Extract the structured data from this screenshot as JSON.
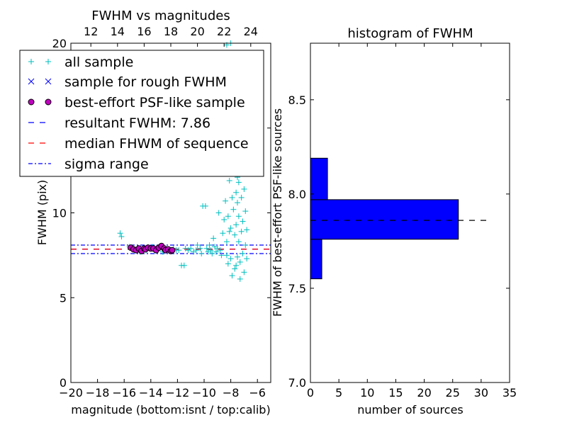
{
  "chart_data": [
    {
      "type": "scatter",
      "title": "FWHM vs magnitudes",
      "xlabel": "magnitude (bottom:isnt / top:calib)",
      "ylabel": "FWHM (pix)",
      "xlim": [
        -20,
        -5
      ],
      "ylim": [
        0,
        20
      ],
      "x_ticks": [
        -20,
        -18,
        -16,
        -14,
        -12,
        -10,
        -8,
        -6
      ],
      "x_tick_labels": [
        "−20",
        "−18",
        "−16",
        "−14",
        "−12",
        "−10",
        "−8",
        "−6"
      ],
      "y_ticks": [
        0,
        5,
        10,
        15,
        20
      ],
      "y_tick_labels": [
        "0",
        "5",
        "10",
        "15",
        "20"
      ],
      "top_axis": {
        "xlim": [
          10.5,
          25.5
        ],
        "ticks": [
          12,
          14,
          16,
          18,
          20,
          22,
          24
        ],
        "tick_labels": [
          "12",
          "14",
          "16",
          "18",
          "20",
          "22",
          "24"
        ]
      },
      "legend": {
        "placement": "upper-left",
        "entries": [
          {
            "label": "all sample",
            "marker": "plus",
            "color": "#00bfbf"
          },
          {
            "label": "sample for rough FWHM",
            "marker": "x",
            "color": "#0000ff"
          },
          {
            "label": "best-effort PSF-like sample",
            "marker": "circle",
            "color": "#bf00bf"
          },
          {
            "label": "resultant FWHM: 7.86",
            "marker": "dash-line",
            "color": "#0000ff"
          },
          {
            "label": "median FHWM of sequence",
            "marker": "dash-line",
            "color": "#ff0000"
          },
          {
            "label": "sigma range",
            "marker": "dashdot-line",
            "color": "#0000ff"
          }
        ]
      },
      "series": [
        {
          "kind": "all_sample",
          "color": "#00bfbf",
          "points": [
            [
              -16.3,
              8.8
            ],
            [
              -16.2,
              8.6
            ],
            [
              -15.6,
              8.0
            ],
            [
              -15.4,
              7.9
            ],
            [
              -15.2,
              7.8
            ],
            [
              -15.0,
              7.9
            ],
            [
              -14.8,
              7.7
            ],
            [
              -14.6,
              7.9
            ],
            [
              -14.3,
              7.8
            ],
            [
              -14.1,
              7.9
            ],
            [
              -13.9,
              8.0
            ],
            [
              -13.7,
              7.8
            ],
            [
              -13.5,
              7.9
            ],
            [
              -13.3,
              7.9
            ],
            [
              -13.1,
              7.7
            ],
            [
              -12.9,
              7.9
            ],
            [
              -12.7,
              7.8
            ],
            [
              -12.5,
              7.8
            ],
            [
              -12.3,
              7.9
            ],
            [
              -12.1,
              7.8
            ],
            [
              -11.9,
              7.8
            ],
            [
              -11.7,
              6.9
            ],
            [
              -11.5,
              6.9
            ],
            [
              -11.4,
              7.9
            ],
            [
              -11.2,
              7.8
            ],
            [
              -11.0,
              7.9
            ],
            [
              -10.8,
              7.7
            ],
            [
              -10.6,
              7.8
            ],
            [
              -10.5,
              8.1
            ],
            [
              -10.3,
              7.9
            ],
            [
              -10.2,
              7.6
            ],
            [
              -10.1,
              10.4
            ],
            [
              -9.9,
              10.4
            ],
            [
              -9.8,
              7.9
            ],
            [
              -9.7,
              7.7
            ],
            [
              -9.6,
              8.1
            ],
            [
              -9.5,
              7.8
            ],
            [
              -9.4,
              7.6
            ],
            [
              -9.3,
              8.5
            ],
            [
              -9.2,
              8.0
            ],
            [
              -9.1,
              7.7
            ],
            [
              -9.0,
              7.9
            ],
            [
              -8.9,
              10.0
            ],
            [
              -8.8,
              7.8
            ],
            [
              -8.7,
              7.5
            ],
            [
              -8.6,
              8.8
            ],
            [
              -8.5,
              9.6
            ],
            [
              -8.4,
              10.7
            ],
            [
              -8.3,
              8.3
            ],
            [
              -8.2,
              7.0
            ],
            [
              -8.1,
              11.9
            ],
            [
              -8.0,
              9.1
            ],
            [
              -7.9,
              6.3
            ],
            [
              -7.8,
              10.2
            ],
            [
              -7.8,
              12.9
            ],
            [
              -7.7,
              8.7
            ],
            [
              -7.7,
              6.7
            ],
            [
              -7.6,
              11.2
            ],
            [
              -7.6,
              9.3
            ],
            [
              -7.6,
              13.6
            ],
            [
              -7.5,
              7.4
            ],
            [
              -7.5,
              10.6
            ],
            [
              -7.5,
              12.1
            ],
            [
              -7.4,
              8.3
            ],
            [
              -7.4,
              11.8
            ],
            [
              -7.4,
              9.8
            ],
            [
              -7.3,
              13.1
            ],
            [
              -7.3,
              7.1
            ],
            [
              -7.3,
              6.1
            ],
            [
              -7.2,
              10.9
            ],
            [
              -7.2,
              8.9
            ],
            [
              -7.2,
              12.4
            ],
            [
              -7.1,
              9.5
            ],
            [
              -7.1,
              7.6
            ],
            [
              -7.0,
              11.4
            ],
            [
              -7.0,
              6.5
            ],
            [
              -6.9,
              8.1
            ],
            [
              -6.9,
              10.1
            ],
            [
              -6.8,
              7.3
            ],
            [
              -6.8,
              9.0
            ],
            [
              -7.0,
              13.9
            ],
            [
              -7.2,
              14.3
            ],
            [
              -7.4,
              14.0
            ],
            [
              -7.9,
              14.4
            ],
            [
              -8.0,
              7.3
            ],
            [
              -8.1,
              8.9
            ],
            [
              -8.2,
              9.8
            ],
            [
              -7.9,
              10.9
            ],
            [
              -8.3,
              7.5
            ],
            [
              -7.6,
              6.9
            ],
            [
              -7.1,
              13.4
            ],
            [
              -8.0,
              20.0
            ],
            [
              -8.3,
              19.9
            ]
          ]
        },
        {
          "kind": "psf_like_sample",
          "color": "#bf00bf",
          "points": [
            [
              -15.5,
              7.95
            ],
            [
              -15.3,
              7.85
            ],
            [
              -15.1,
              7.8
            ],
            [
              -14.9,
              7.9
            ],
            [
              -14.7,
              7.75
            ],
            [
              -14.5,
              7.9
            ],
            [
              -14.4,
              7.85
            ],
            [
              -14.2,
              7.95
            ],
            [
              -14.0,
              7.9
            ],
            [
              -13.8,
              7.9
            ],
            [
              -13.6,
              7.8
            ],
            [
              -13.4,
              7.95
            ],
            [
              -13.2,
              8.05
            ],
            [
              -13.0,
              7.9
            ],
            [
              -12.9,
              7.8
            ],
            [
              -12.7,
              7.85
            ],
            [
              -12.5,
              7.75
            ],
            [
              -12.4,
              7.8
            ]
          ]
        }
      ],
      "reference_lines": [
        {
          "kind": "resultant",
          "y": 7.86,
          "color": "#0000ff",
          "style": "dashed"
        },
        {
          "kind": "median",
          "y": 7.86,
          "color": "#ff0000",
          "style": "dashed"
        },
        {
          "kind": "sigma_upper",
          "y": 8.1,
          "color": "#0000ff",
          "style": "dashdot"
        },
        {
          "kind": "sigma_lower",
          "y": 7.6,
          "color": "#0000ff",
          "style": "dashdot"
        }
      ]
    },
    {
      "type": "bar",
      "orientation": "horizontal",
      "title": "histogram of FWHM",
      "xlabel": "number of sources",
      "ylabel": "FWHM of best-effort PSF-like sources",
      "xlim": [
        0,
        35
      ],
      "ylim": [
        7.0,
        8.8
      ],
      "x_ticks": [
        0,
        5,
        10,
        15,
        20,
        25,
        30,
        35
      ],
      "x_tick_labels": [
        "0",
        "5",
        "10",
        "15",
        "20",
        "25",
        "30",
        "35"
      ],
      "y_ticks": [
        7.0,
        7.5,
        8.0,
        8.5
      ],
      "y_tick_labels": [
        "7.0",
        "7.5",
        "8.0",
        "8.5"
      ],
      "bar_color": "#0000ff",
      "bins": [
        {
          "start": 7.55,
          "end": 7.76,
          "count": 2
        },
        {
          "start": 7.76,
          "end": 7.97,
          "count": 26
        },
        {
          "start": 7.97,
          "end": 8.19,
          "count": 3
        }
      ],
      "reference_line": {
        "y": 7.86,
        "x_end": 31,
        "color": "#000000",
        "style": "dashed"
      }
    }
  ]
}
